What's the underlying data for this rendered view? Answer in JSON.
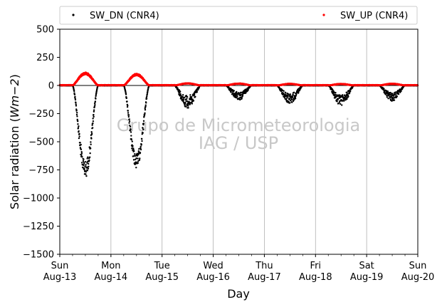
{
  "chart_data": {
    "type": "scatter",
    "title": "",
    "xlabel": "Day",
    "ylabel_main": "Solar radiation (",
    "ylabel_math": "Wm−2",
    "ylabel_close": ")",
    "ylim": [
      -1500,
      500
    ],
    "yticks": [
      500,
      250,
      0,
      -250,
      -500,
      -750,
      -1000,
      -1250,
      -1500
    ],
    "ytick_labels": [
      "500",
      "250",
      "0",
      "−250",
      "−500",
      "−750",
      "−1000",
      "−1250",
      "−1500"
    ],
    "xlim": [
      0,
      7
    ],
    "xticks": [
      {
        "x": 0,
        "line1": "Sun",
        "line2": "Aug-13"
      },
      {
        "x": 1,
        "line1": "Mon",
        "line2": "Aug-14"
      },
      {
        "x": 2,
        "line1": "Tue",
        "line2": "Aug-15"
      },
      {
        "x": 3,
        "line1": "Wed",
        "line2": "Aug-16"
      },
      {
        "x": 4,
        "line1": "Thu",
        "line2": "Aug-17"
      },
      {
        "x": 5,
        "line1": "Fri",
        "line2": "Aug-18"
      },
      {
        "x": 6,
        "line1": "Sat",
        "line2": "Aug-19"
      },
      {
        "x": 7,
        "line1": "Sun",
        "line2": "Aug-20"
      }
    ],
    "grid": "x-major",
    "legend_placement": "top",
    "watermark": [
      "Grupo de Micrometeorologia",
      "IAG / USP"
    ],
    "series": [
      {
        "name": "SW_DN (CNR4)",
        "color": "#000000",
        "daily_min": [
          -820,
          -740,
          -200,
          -130,
          -160,
          -180,
          -140
        ]
      },
      {
        "name": "SW_UP (CNR4)",
        "color": "#ff0000",
        "daily_max": [
          115,
          105,
          20,
          18,
          15,
          14,
          16
        ]
      }
    ]
  }
}
